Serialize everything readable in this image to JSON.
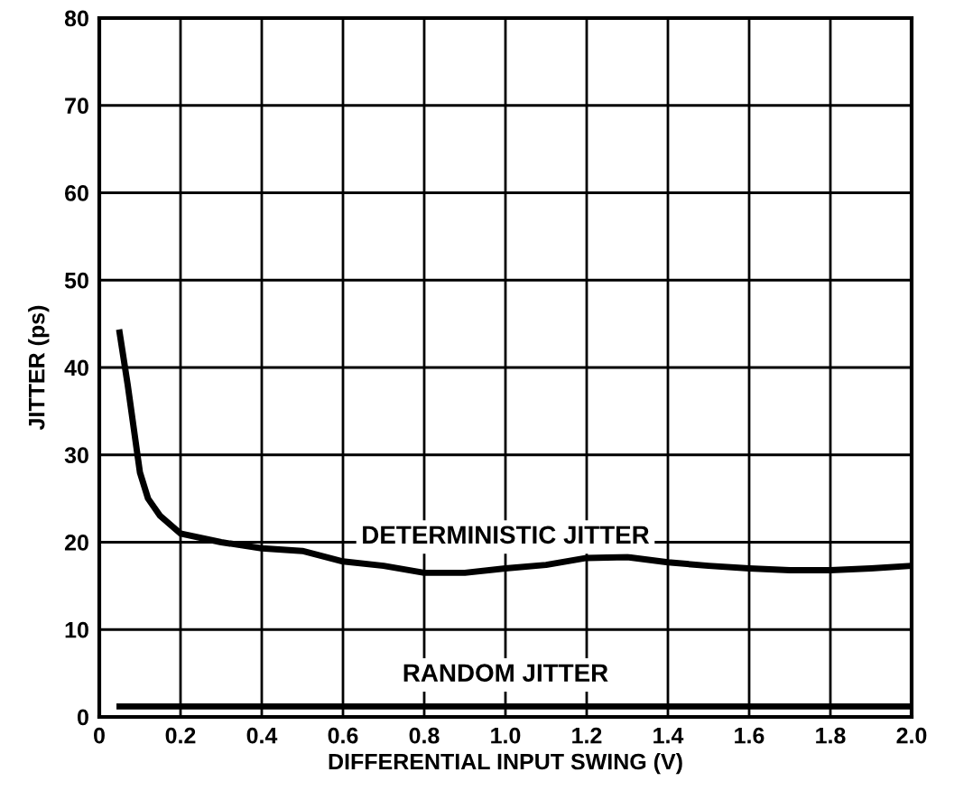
{
  "chart_data": {
    "type": "line",
    "xlabel": "DIFFERENTIAL INPUT SWING (V)",
    "ylabel": "JITTER (ps)",
    "xlim": [
      0,
      2.0
    ],
    "ylim": [
      0,
      80
    ],
    "xticks": [
      {
        "value": 0,
        "label": "0"
      },
      0.2,
      0.4,
      0.6,
      0.8,
      {
        "value": 1.0,
        "label": "1.0"
      },
      1.2,
      1.4,
      1.6,
      1.8,
      {
        "value": 2.0,
        "label": "2.0"
      }
    ],
    "yticks": [
      0,
      10,
      20,
      30,
      40,
      50,
      60,
      70,
      80
    ],
    "grid": true,
    "legend": false,
    "marker": "none",
    "line_style": "solid",
    "series": [
      {
        "name": "DETERMINISTIC JITTER",
        "color": "#000000",
        "x": [
          0.05,
          0.07,
          0.1,
          0.12,
          0.15,
          0.2,
          0.3,
          0.4,
          0.5,
          0.6,
          0.7,
          0.8,
          0.9,
          1.0,
          1.1,
          1.2,
          1.3,
          1.4,
          1.5,
          1.6,
          1.7,
          1.8,
          1.9,
          2.0
        ],
        "values": [
          44,
          38,
          28,
          25,
          23,
          21,
          20,
          19.3,
          19,
          17.8,
          17.3,
          16.5,
          16.5,
          17,
          17.4,
          18.2,
          18.3,
          17.7,
          17.3,
          17,
          16.8,
          16.8,
          17,
          17.3
        ]
      },
      {
        "name": "RANDOM JITTER",
        "color": "#000000",
        "x": [
          0.05,
          2.0
        ],
        "values": [
          1.2,
          1.2
        ]
      }
    ]
  }
}
